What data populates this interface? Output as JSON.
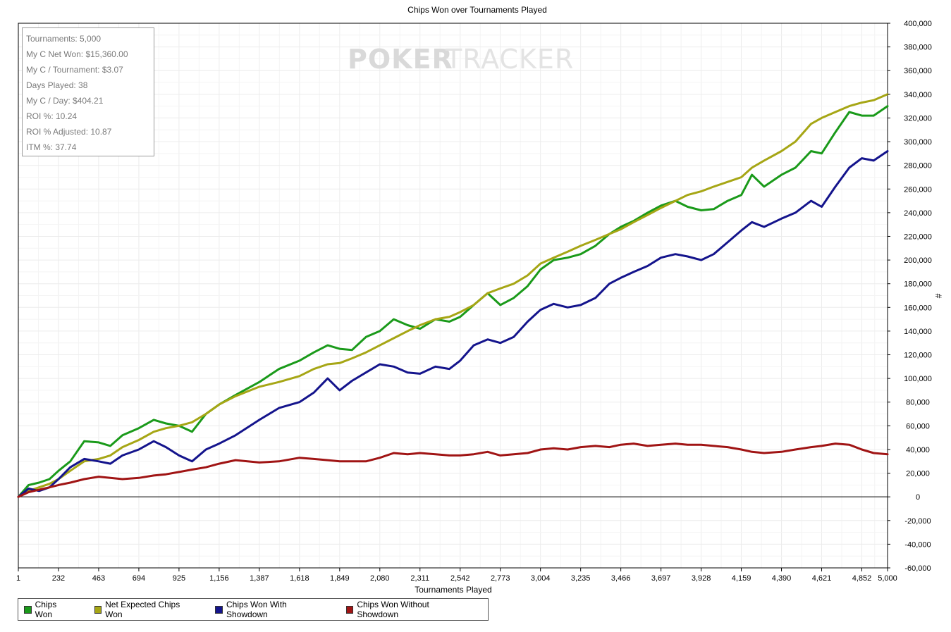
{
  "chart_data": {
    "type": "line",
    "title": "Chips Won over Tournaments Played",
    "xlabel": "Tournaments Played",
    "ylabel": "#",
    "xlim": [
      1,
      5000
    ],
    "ylim": [
      -60000,
      400000
    ],
    "x_ticks": [
      1,
      232,
      463,
      694,
      925,
      1156,
      1387,
      1618,
      1849,
      2080,
      2311,
      2542,
      2773,
      3004,
      3235,
      3466,
      3697,
      3928,
      4159,
      4390,
      4621,
      4852,
      5000
    ],
    "x_tick_labels": [
      "1",
      "232",
      "463",
      "694",
      "925",
      "1,156",
      "1,387",
      "1,618",
      "1,849",
      "2,080",
      "2,311",
      "2,542",
      "2,773",
      "3,004",
      "3,235",
      "3,466",
      "3,697",
      "3,928",
      "4,159",
      "4,390",
      "4,621",
      "4,852",
      "5,000"
    ],
    "y_ticks": [
      -60000,
      -40000,
      -20000,
      0,
      20000,
      40000,
      60000,
      80000,
      100000,
      120000,
      140000,
      160000,
      180000,
      200000,
      220000,
      240000,
      260000,
      280000,
      300000,
      320000,
      340000,
      360000,
      380000,
      400000
    ],
    "y_tick_labels": [
      "-60,000",
      "-40,000",
      "-20,000",
      "0",
      "20,000",
      "40,000",
      "60,000",
      "80,000",
      "100,000",
      "120,000",
      "140,000",
      "160,000",
      "180,000",
      "200,000",
      "220,000",
      "240,000",
      "260,000",
      "280,000",
      "300,000",
      "320,000",
      "340,000",
      "360,000",
      "380,000",
      "400,000"
    ],
    "grid": true,
    "legend_position": "bottom-left",
    "series": [
      {
        "name": "Chips Won",
        "color": "#1a9a1a",
        "x": [
          1,
          60,
          120,
          180,
          232,
          300,
          380,
          463,
          530,
          600,
          694,
          780,
          850,
          925,
          1000,
          1080,
          1156,
          1250,
          1387,
          1500,
          1618,
          1700,
          1780,
          1849,
          1920,
          2000,
          2080,
          2160,
          2240,
          2311,
          2400,
          2480,
          2542,
          2620,
          2700,
          2773,
          2850,
          2930,
          3004,
          3080,
          3160,
          3235,
          3320,
          3400,
          3466,
          3540,
          3620,
          3697,
          3780,
          3850,
          3928,
          4000,
          4080,
          4159,
          4220,
          4290,
          4390,
          4470,
          4560,
          4621,
          4700,
          4780,
          4852,
          4920,
          5000
        ],
        "y": [
          0,
          10000,
          12000,
          15000,
          22000,
          30000,
          47000,
          46000,
          43000,
          52000,
          58000,
          65000,
          62000,
          60000,
          55000,
          70000,
          78000,
          86000,
          97000,
          108000,
          115000,
          122000,
          128000,
          125000,
          124000,
          135000,
          140000,
          150000,
          145000,
          142000,
          150000,
          148000,
          152000,
          162000,
          172000,
          162000,
          168000,
          178000,
          192000,
          200000,
          202000,
          205000,
          212000,
          222000,
          228000,
          233000,
          240000,
          246000,
          250000,
          245000,
          242000,
          243000,
          250000,
          255000,
          272000,
          262000,
          272000,
          278000,
          292000,
          290000,
          308000,
          325000,
          322000,
          322000,
          330000
        ]
      },
      {
        "name": "Net Expected Chips Won",
        "color": "#a6a615",
        "x": [
          1,
          60,
          120,
          180,
          232,
          300,
          380,
          463,
          530,
          600,
          694,
          780,
          850,
          925,
          1000,
          1080,
          1156,
          1250,
          1387,
          1500,
          1618,
          1700,
          1780,
          1849,
          1920,
          2000,
          2080,
          2160,
          2240,
          2311,
          2400,
          2480,
          2542,
          2620,
          2700,
          2773,
          2850,
          2930,
          3004,
          3080,
          3160,
          3235,
          3320,
          3400,
          3466,
          3540,
          3620,
          3697,
          3780,
          3850,
          3928,
          4000,
          4080,
          4159,
          4220,
          4290,
          4390,
          4470,
          4560,
          4621,
          4700,
          4780,
          4852,
          4920,
          5000
        ],
        "y": [
          0,
          5000,
          8000,
          11000,
          15000,
          22000,
          30000,
          32000,
          35000,
          42000,
          48000,
          55000,
          58000,
          60000,
          63000,
          70000,
          78000,
          85000,
          93000,
          97000,
          102000,
          108000,
          112000,
          113000,
          117000,
          122000,
          128000,
          134000,
          140000,
          145000,
          150000,
          152000,
          156000,
          162000,
          172000,
          176000,
          180000,
          187000,
          197000,
          202000,
          207000,
          212000,
          217000,
          222000,
          226000,
          232000,
          238000,
          244000,
          250000,
          255000,
          258000,
          262000,
          266000,
          270000,
          278000,
          284000,
          292000,
          300000,
          315000,
          320000,
          325000,
          330000,
          333000,
          335000,
          340000
        ]
      },
      {
        "name": "Chips Won With Showdown",
        "color": "#14148c",
        "x": [
          1,
          60,
          120,
          180,
          232,
          300,
          380,
          463,
          530,
          600,
          694,
          780,
          850,
          925,
          1000,
          1080,
          1156,
          1250,
          1387,
          1500,
          1618,
          1700,
          1780,
          1849,
          1920,
          2000,
          2080,
          2160,
          2240,
          2311,
          2400,
          2480,
          2542,
          2620,
          2700,
          2773,
          2850,
          2930,
          3004,
          3080,
          3160,
          3235,
          3320,
          3400,
          3466,
          3540,
          3620,
          3697,
          3780,
          3850,
          3928,
          4000,
          4080,
          4159,
          4220,
          4290,
          4390,
          4470,
          4560,
          4621,
          4700,
          4780,
          4852,
          4920,
          5000
        ],
        "y": [
          0,
          7000,
          5000,
          8000,
          15000,
          25000,
          32000,
          30000,
          28000,
          35000,
          40000,
          47000,
          42000,
          35000,
          30000,
          40000,
          45000,
          52000,
          65000,
          75000,
          80000,
          88000,
          100000,
          90000,
          98000,
          105000,
          112000,
          110000,
          105000,
          104000,
          110000,
          108000,
          115000,
          128000,
          133000,
          130000,
          135000,
          148000,
          158000,
          163000,
          160000,
          162000,
          168000,
          180000,
          185000,
          190000,
          195000,
          202000,
          205000,
          203000,
          200000,
          205000,
          215000,
          225000,
          232000,
          228000,
          235000,
          240000,
          250000,
          245000,
          262000,
          278000,
          286000,
          284000,
          292000
        ]
      },
      {
        "name": "Chips Won Without Showdown",
        "color": "#a01414",
        "x": [
          1,
          60,
          120,
          180,
          232,
          300,
          380,
          463,
          530,
          600,
          694,
          780,
          850,
          925,
          1000,
          1080,
          1156,
          1250,
          1387,
          1500,
          1618,
          1700,
          1780,
          1849,
          1920,
          2000,
          2080,
          2160,
          2240,
          2311,
          2400,
          2480,
          2542,
          2620,
          2700,
          2773,
          2850,
          2930,
          3004,
          3080,
          3160,
          3235,
          3320,
          3400,
          3466,
          3540,
          3620,
          3697,
          3780,
          3850,
          3928,
          4000,
          4080,
          4159,
          4220,
          4290,
          4390,
          4470,
          4560,
          4621,
          4700,
          4780,
          4852,
          4920,
          5000
        ],
        "y": [
          0,
          4000,
          6000,
          8000,
          10000,
          12000,
          15000,
          17000,
          16000,
          15000,
          16000,
          18000,
          19000,
          21000,
          23000,
          25000,
          28000,
          31000,
          29000,
          30000,
          33000,
          32000,
          31000,
          30000,
          30000,
          30000,
          33000,
          37000,
          36000,
          37000,
          36000,
          35000,
          35000,
          36000,
          38000,
          35000,
          36000,
          37000,
          40000,
          41000,
          40000,
          42000,
          43000,
          42000,
          44000,
          45000,
          43000,
          44000,
          45000,
          44000,
          44000,
          43000,
          42000,
          40000,
          38000,
          37000,
          38000,
          40000,
          42000,
          43000,
          45000,
          44000,
          40000,
          37000,
          36000
        ]
      }
    ]
  },
  "stats": [
    "Tournaments: 5,000",
    "My C Net Won: $15,360.00",
    "My C / Tournament: $3.07",
    "Days Played: 38",
    "My C / Day: $404.21",
    "ROI %: 10.24",
    "ROI % Adjusted: 10.87",
    "ITM %: 37.74"
  ],
  "watermark": {
    "bold": "POKER",
    "light": "TRACKER"
  }
}
